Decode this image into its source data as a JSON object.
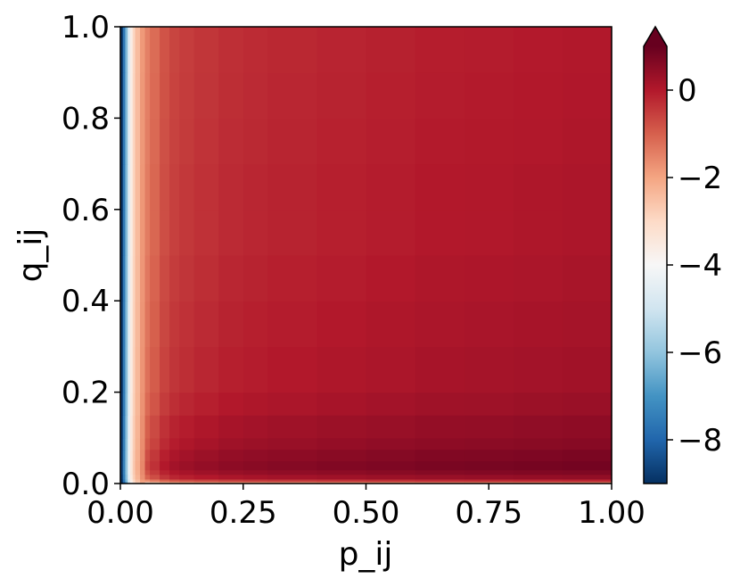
{
  "chart_data": {
    "type": "heatmap",
    "title": "",
    "xlabel": "p_ij",
    "ylabel": "q_ij",
    "xlim": [
      0.0,
      1.0
    ],
    "ylim": [
      0.0,
      1.0
    ],
    "xticks": [
      "0.00",
      "0.25",
      "0.50",
      "0.75",
      "1.00"
    ],
    "yticks": [
      "0.0",
      "0.2",
      "0.4",
      "0.6",
      "0.8",
      "1.0"
    ],
    "grid": false,
    "colormap": "RdBu_r",
    "colormap_stops": [
      "#053061",
      "#2166ac",
      "#4393c3",
      "#92c5de",
      "#d1e5f0",
      "#f7f7f7",
      "#fddbc7",
      "#f4a582",
      "#d6604d",
      "#b2182b",
      "#67001f"
    ],
    "colorbar": {
      "range": [
        -9,
        1
      ],
      "ticks": [
        "0",
        "−2",
        "−4",
        "−6",
        "−8"
      ],
      "extend": "max"
    },
    "x": [
      0.0,
      0.005,
      0.01,
      0.015,
      0.02,
      0.025,
      0.03,
      0.04,
      0.05,
      0.06,
      0.08,
      0.1,
      0.12,
      0.15,
      0.2,
      0.25,
      0.3,
      0.4,
      0.5,
      0.6,
      0.7,
      0.8,
      0.9,
      1.0
    ],
    "y": [
      0.0,
      0.005,
      0.01,
      0.02,
      0.03,
      0.05,
      0.075,
      0.1,
      0.15,
      0.2,
      0.3,
      0.4,
      0.5,
      0.6,
      0.7,
      0.8,
      0.9,
      1.0
    ],
    "values_by_x_at_q_0_5": [
      -9.0,
      -7.6,
      -6.2,
      -4.6,
      -3.6,
      -2.9,
      -2.4,
      -1.8,
      -1.4,
      -1.1,
      -0.75,
      -0.55,
      -0.45,
      -0.35,
      -0.25,
      -0.2,
      -0.15,
      -0.1,
      -0.05,
      0.0,
      0.02,
      0.05,
      0.08,
      0.1
    ],
    "values_by_y_at_p_0_5": [
      -1.4,
      -0.3,
      0.3,
      0.55,
      0.7,
      0.6,
      0.45,
      0.35,
      0.2,
      0.1,
      0.05,
      0.0,
      -0.05,
      -0.05,
      -0.08,
      -0.1,
      -0.12,
      -0.15
    ]
  }
}
